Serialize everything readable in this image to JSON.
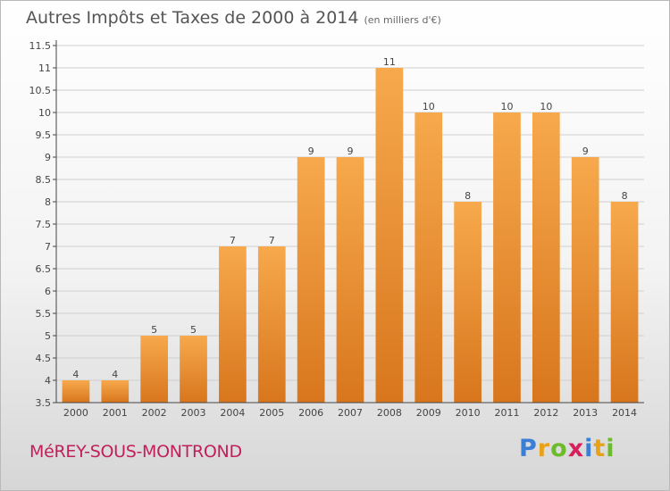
{
  "header": {
    "title": "Autres Impôts et Taxes de 2000 à 2014",
    "unit": "(en milliers d'€)"
  },
  "footer": {
    "commune": "MéREY-SOUS-MONTROND",
    "logo": [
      "P",
      "r",
      "o",
      "x",
      "i",
      "t",
      "i"
    ],
    "logo_colors": [
      "#3a7fd5",
      "#e8a21a",
      "#6dbb2c",
      "#d81e5b",
      "#3a7fd5",
      "#e8a21a",
      "#6dbb2c"
    ]
  },
  "colors": {
    "bar_top": "#f7a94c",
    "bar_bottom": "#d8761d",
    "grid": "#cfcfcf",
    "axis": "#444444"
  },
  "chart_data": {
    "type": "bar",
    "title": "Autres Impôts et Taxes de 2000 à 2014",
    "xlabel": "",
    "ylabel": "",
    "categories": [
      "2000",
      "2001",
      "2002",
      "2003",
      "2004",
      "2005",
      "2006",
      "2007",
      "2008",
      "2009",
      "2010",
      "2011",
      "2012",
      "2013",
      "2014"
    ],
    "values": [
      4,
      4,
      5,
      5,
      7,
      7,
      9,
      9,
      11,
      10,
      8,
      10,
      10,
      9,
      8
    ],
    "ylim": [
      3.5,
      11.5
    ],
    "yticks": [
      "3.5",
      "4",
      "4.5",
      "5",
      "5.5",
      "6",
      "6.5",
      "7",
      "7.5",
      "8",
      "8.5",
      "9",
      "9.5",
      "10",
      "10.5",
      "11",
      "11.5"
    ],
    "grid": true
  }
}
